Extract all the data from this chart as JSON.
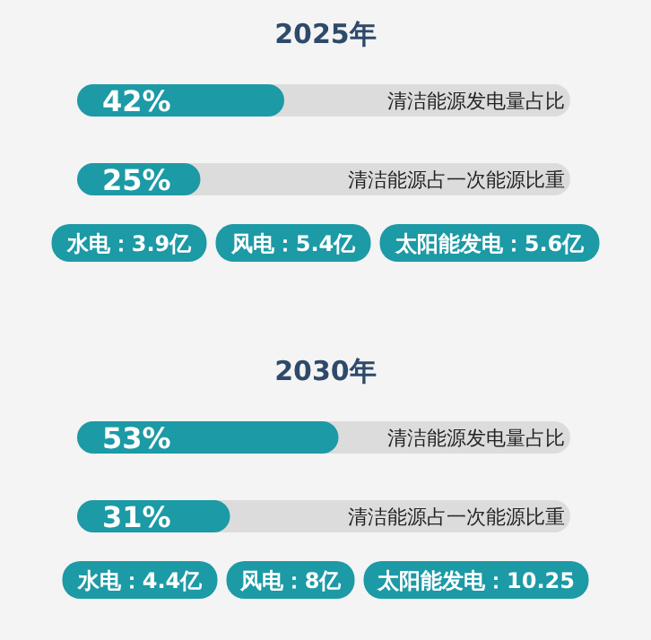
{
  "chart_data": [
    {
      "type": "bar",
      "orientation": "horizontal",
      "title": "2025年",
      "categories": [
        "清洁能源发电量占比",
        "清洁能源占一次能源比重"
      ],
      "values": [
        42,
        25
      ],
      "value_labels": [
        "42%",
        "25%"
      ],
      "xlim": [
        0,
        100
      ],
      "color": "#1c9aa6",
      "annotations": [
        "水电：3.9亿",
        "风电：5.4亿",
        "太阳能发电：5.6亿"
      ]
    },
    {
      "type": "bar",
      "orientation": "horizontal",
      "title": "2030年",
      "categories": [
        "清洁能源发电量占比",
        "清洁能源占一次能源比重"
      ],
      "values": [
        53,
        31
      ],
      "value_labels": [
        "53%",
        "31%"
      ],
      "xlim": [
        0,
        100
      ],
      "color": "#1c9aa6",
      "annotations": [
        "水电：4.4亿",
        "风电：8亿",
        "太阳能发电：10.25"
      ]
    }
  ]
}
